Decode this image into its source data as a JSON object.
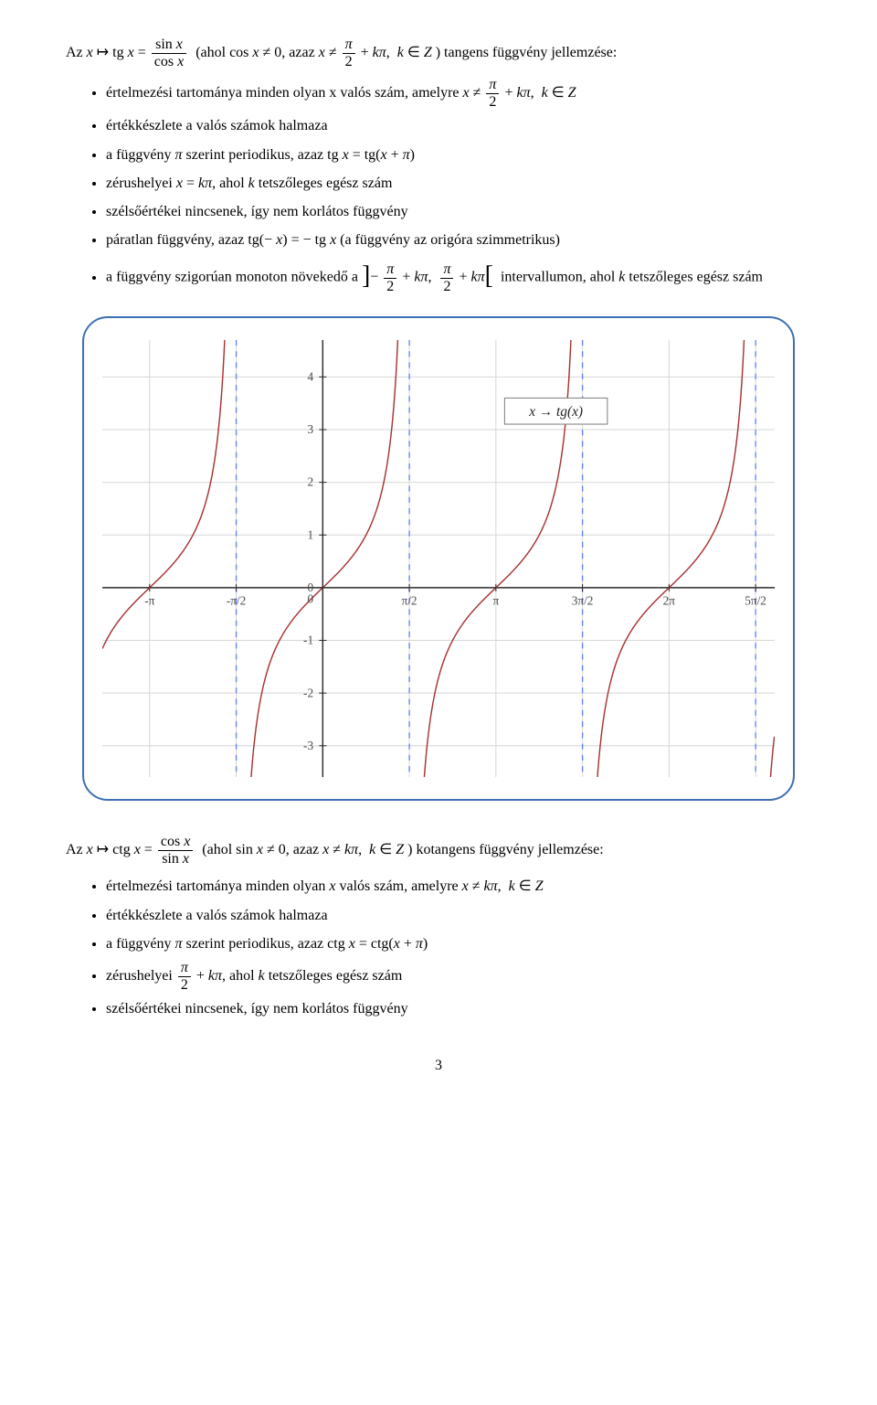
{
  "tangent": {
    "intro_prefix": "Az ",
    "def_lhs": "x ↦ tg x =",
    "condition_prefix": "(ahol cos x ≠ 0, azaz ",
    "condition_suffix": ") tangens függvény jellemzése:",
    "k_in_Z": "k ∈ Z",
    "bullets": {
      "domain_prefix": "értelmezési tartománya minden olyan x valós szám, amelyre ",
      "range": "értékkészlete a valós számok halmaza",
      "periodic": "a függvény π szerint periodikus, azaz tg x = tg(x + π)",
      "zeros": "zérushelyei x = kπ, ahol k tetszőleges egész szám",
      "extrema": "szélsőértékei nincsenek, így nem korlátos függvény",
      "odd": "páratlan függvény, azaz tg(− x) = − tg x (a függvény az origóra szimmetrikus)",
      "monotone_prefix": "a függvény szigorúan monoton növekedő a ",
      "monotone_suffix": " intervallumon, ahol k tetszőleges egész szám"
    }
  },
  "cotangent": {
    "intro_prefix": "Az ",
    "def_lhs": "x ↦ ctg x =",
    "condition_prefix": "(ahol sin x ≠ 0, azaz x ≠ kπ, ",
    "condition_suffix": ") kotangens függvény jellemzése:",
    "k_in_Z": "k ∈ Z",
    "bullets": {
      "domain": "értelmezési tartománya minden olyan x valós szám, amelyre x ≠ kπ, k ∈ Z",
      "range": "értékkészlete a valós számok halmaza",
      "periodic": "a függvény π szerint periodikus, azaz ctg x = ctg(x + π)",
      "zeros_prefix": "zérushelyei ",
      "zeros_suffix": ", ahol k tetszőleges egész szám",
      "extrema": "szélsőértékei nincsenek, így nem korlátos függvény"
    }
  },
  "chart": {
    "type": "line",
    "function_label": "x → tg(x)",
    "vb_w": 720,
    "vb_h": 468,
    "x_range_mathunits": [
      -4.0,
      8.2
    ],
    "y_range": [
      -3.6,
      4.7
    ],
    "curve_color": "#a83232",
    "curve_width": 1.4,
    "asymptote_color": "#6080ff",
    "asymptote_dash": "6,6",
    "asymptote_width": 1.3,
    "grid_color": "#d7d7d7",
    "axis_color": "#2a2a2a",
    "tick_font_size": 13,
    "label_font_size": 15,
    "background_color": "#ffffff",
    "grid_step_x": 1.5708,
    "grid_step_y": 1,
    "x_tick_labels": [
      "-π",
      "-π/2",
      "0",
      "π/2",
      "π",
      "3π/2",
      "2π",
      "5π/2"
    ],
    "x_tick_positions": [
      -3.1416,
      -1.5708,
      0,
      1.5708,
      3.1416,
      4.7124,
      6.2832,
      7.854
    ],
    "y_tick_labels": [
      "-3",
      "-2",
      "-1",
      "0",
      "1",
      "2",
      "3",
      "4"
    ],
    "y_tick_positions": [
      -3,
      -2,
      -1,
      0,
      1,
      2,
      3,
      4
    ],
    "asymptote_x": [
      -1.5708,
      1.5708,
      4.7124,
      7.854
    ]
  },
  "page_number": "3"
}
